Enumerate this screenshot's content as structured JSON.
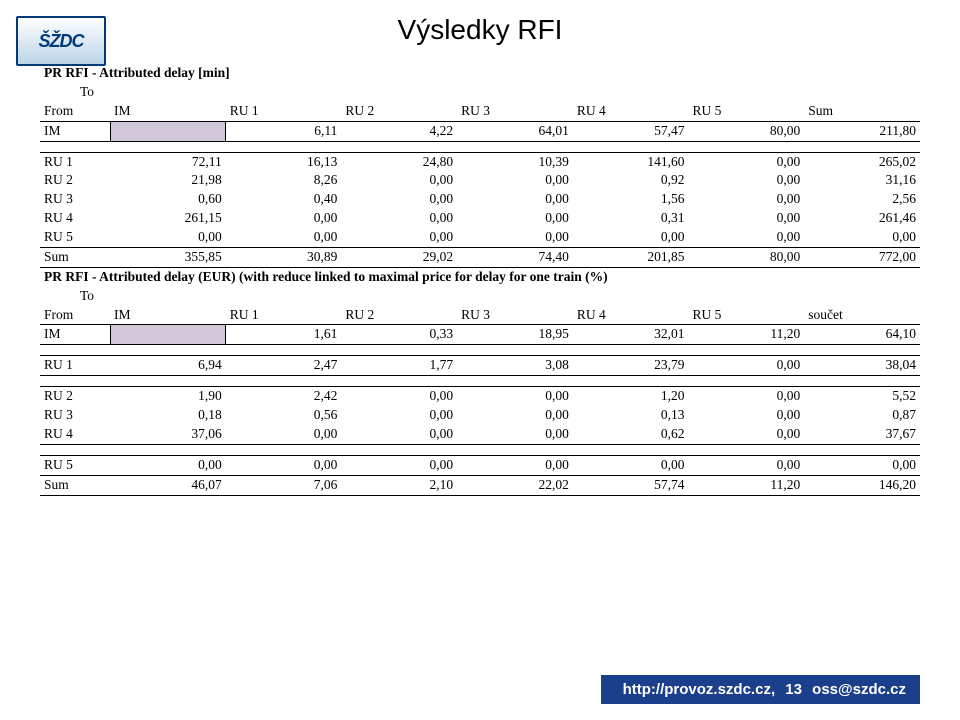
{
  "logo_text": "ŠŽDC",
  "title": "Výsledky RFI",
  "t1": {
    "title": "PR RFI - Attributed delay [min]",
    "to_label": "To",
    "from_label": "From",
    "cols": [
      "IM",
      "RU 1",
      "RU 2",
      "RU 3",
      "RU 4",
      "RU 5",
      "Sum"
    ],
    "rows": [
      {
        "label": "IM",
        "vals": [
          "",
          "6,11",
          "4,22",
          "64,01",
          "57,47",
          "80,00",
          "211,80"
        ],
        "shade": true,
        "top": true,
        "bottom": true,
        "gap_after": true
      },
      {
        "label": "RU 1",
        "vals": [
          "72,11",
          "16,13",
          "24,80",
          "10,39",
          "141,60",
          "0,00",
          "265,02"
        ],
        "top": true
      },
      {
        "label": "RU 2",
        "vals": [
          "21,98",
          "8,26",
          "0,00",
          "0,00",
          "0,92",
          "0,00",
          "31,16"
        ]
      },
      {
        "label": "RU 3",
        "vals": [
          "0,60",
          "0,40",
          "0,00",
          "0,00",
          "1,56",
          "0,00",
          "2,56"
        ]
      },
      {
        "label": "RU 4",
        "vals": [
          "261,15",
          "0,00",
          "0,00",
          "0,00",
          "0,31",
          "0,00",
          "261,46"
        ]
      },
      {
        "label": "RU 5",
        "vals": [
          "0,00",
          "0,00",
          "0,00",
          "0,00",
          "0,00",
          "0,00",
          "0,00"
        ],
        "bottom": true
      },
      {
        "label": "Sum",
        "vals": [
          "355,85",
          "30,89",
          "29,02",
          "74,40",
          "201,85",
          "80,00",
          "772,00"
        ],
        "bottom": true
      }
    ]
  },
  "t2": {
    "title": "PR RFI - Attributed delay (EUR) (with reduce linked to maximal price for delay for one train (%)",
    "to_label": "To",
    "from_label": "From",
    "cols": [
      "IM",
      "RU 1",
      "RU 2",
      "RU 3",
      "RU 4",
      "RU 5",
      "součet"
    ],
    "rows": [
      {
        "label": "IM",
        "vals": [
          "",
          "1,61",
          "0,33",
          "18,95",
          "32,01",
          "11,20",
          "64,10"
        ],
        "shade": true,
        "top": true,
        "bottom": true,
        "gap_after": true
      },
      {
        "label": "RU 1",
        "vals": [
          "6,94",
          "2,47",
          "1,77",
          "3,08",
          "23,79",
          "0,00",
          "38,04"
        ],
        "top": true,
        "bottom": true,
        "gap_after": true
      },
      {
        "label": "RU 2",
        "vals": [
          "1,90",
          "2,42",
          "0,00",
          "0,00",
          "1,20",
          "0,00",
          "5,52"
        ],
        "top": true
      },
      {
        "label": "RU 3",
        "vals": [
          "0,18",
          "0,56",
          "0,00",
          "0,00",
          "0,13",
          "0,00",
          "0,87"
        ]
      },
      {
        "label": "RU 4",
        "vals": [
          "37,06",
          "0,00",
          "0,00",
          "0,00",
          "0,62",
          "0,00",
          "37,67"
        ],
        "bottom": true,
        "gap_after": true
      },
      {
        "label": "RU 5",
        "vals": [
          "0,00",
          "0,00",
          "0,00",
          "0,00",
          "0,00",
          "0,00",
          "0,00"
        ],
        "top": true,
        "bottom": true
      },
      {
        "label": "Sum",
        "vals": [
          "46,07",
          "7,06",
          "2,10",
          "22,02",
          "57,74",
          "11,20",
          "146,20"
        ],
        "bottom": true
      }
    ]
  },
  "footer": {
    "url": "http://provoz.szdc.cz,",
    "page": "13",
    "email": "oss@szdc.cz"
  }
}
